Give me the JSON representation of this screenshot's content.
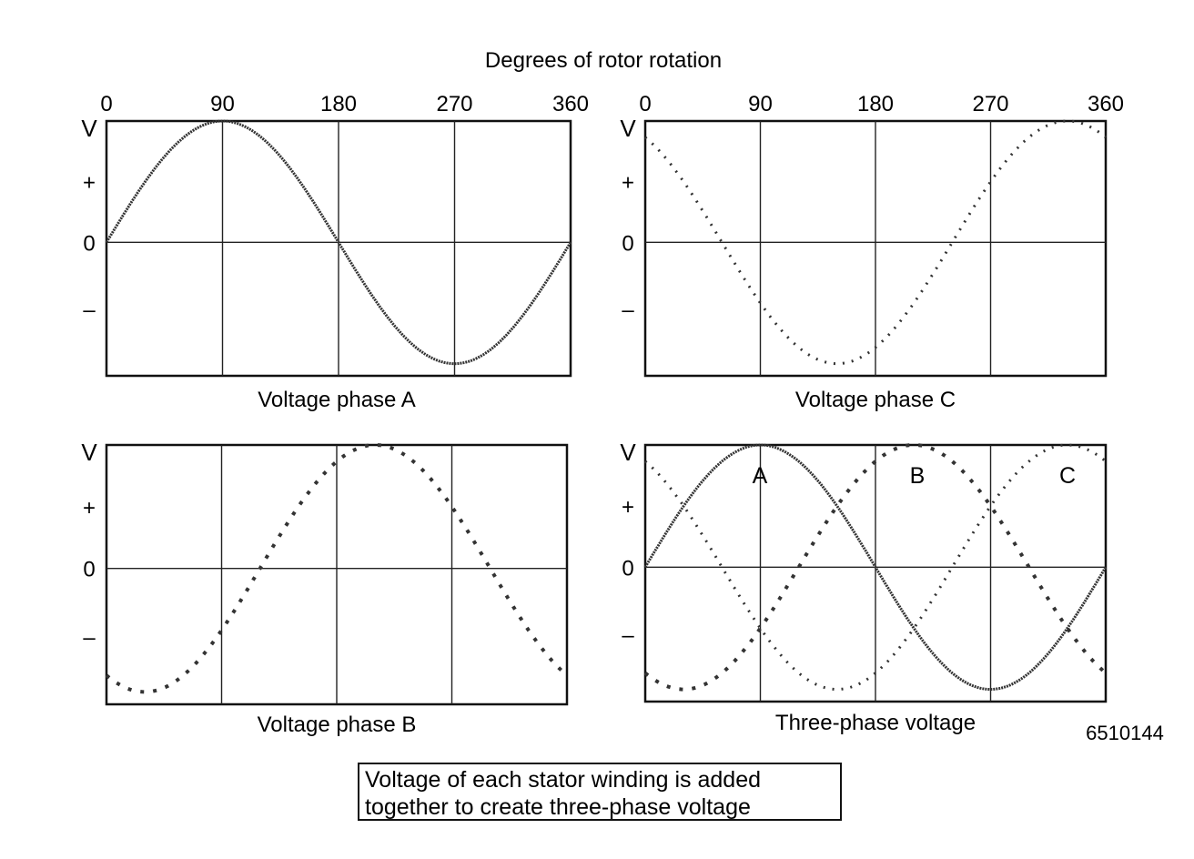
{
  "header": {
    "axis_title": "Degrees of rotor rotation"
  },
  "figure_id": "6510144",
  "caption": {
    "line1": "Voltage of each stator winding is added",
    "line2": "together to create three-phase voltage"
  },
  "chart_data": [
    {
      "type": "line",
      "title": "Voltage phase A",
      "xlabel": "Degrees of rotor rotation",
      "ylabel": "V",
      "x_ticks": [
        "0",
        "90",
        "180",
        "270",
        "360"
      ],
      "y_ticks": [
        "V",
        "+",
        "0",
        "–"
      ],
      "xlim": [
        0,
        360
      ],
      "ylim": [
        -1.1,
        1.0
      ],
      "series": [
        {
          "phase_shift_deg": 0,
          "amplitude": 1,
          "style": "solid"
        }
      ]
    },
    {
      "type": "line",
      "title": "Voltage phase C",
      "xlabel": "Degrees of rotor rotation",
      "ylabel": "V",
      "x_ticks": [
        "0",
        "90",
        "180",
        "270",
        "360"
      ],
      "y_ticks": [
        "V",
        "+",
        "0",
        "–"
      ],
      "xlim": [
        0,
        360
      ],
      "ylim": [
        -1.1,
        1.0
      ],
      "series": [
        {
          "phase_shift_deg": 240,
          "amplitude": 1,
          "style": "dotted"
        }
      ]
    },
    {
      "type": "line",
      "title": "Voltage phase B",
      "ylabel": "V",
      "y_ticks": [
        "V",
        "+",
        "0",
        "–"
      ],
      "xlim": [
        0,
        360
      ],
      "ylim": [
        -1.1,
        1.0
      ],
      "series": [
        {
          "phase_shift_deg": 120,
          "amplitude": 1,
          "style": "dashed"
        }
      ]
    },
    {
      "type": "line",
      "title": "Three-phase voltage",
      "ylabel": "V",
      "y_ticks": [
        "V",
        "+",
        "0",
        "–"
      ],
      "xlim": [
        0,
        360
      ],
      "ylim": [
        -1.1,
        1.0
      ],
      "series": [
        {
          "name": "A",
          "phase_shift_deg": 0,
          "amplitude": 1,
          "style": "solid"
        },
        {
          "name": "B",
          "phase_shift_deg": 120,
          "amplitude": 1,
          "style": "dashed"
        },
        {
          "name": "C",
          "phase_shift_deg": 240,
          "amplitude": 1,
          "style": "dotted"
        }
      ]
    }
  ]
}
